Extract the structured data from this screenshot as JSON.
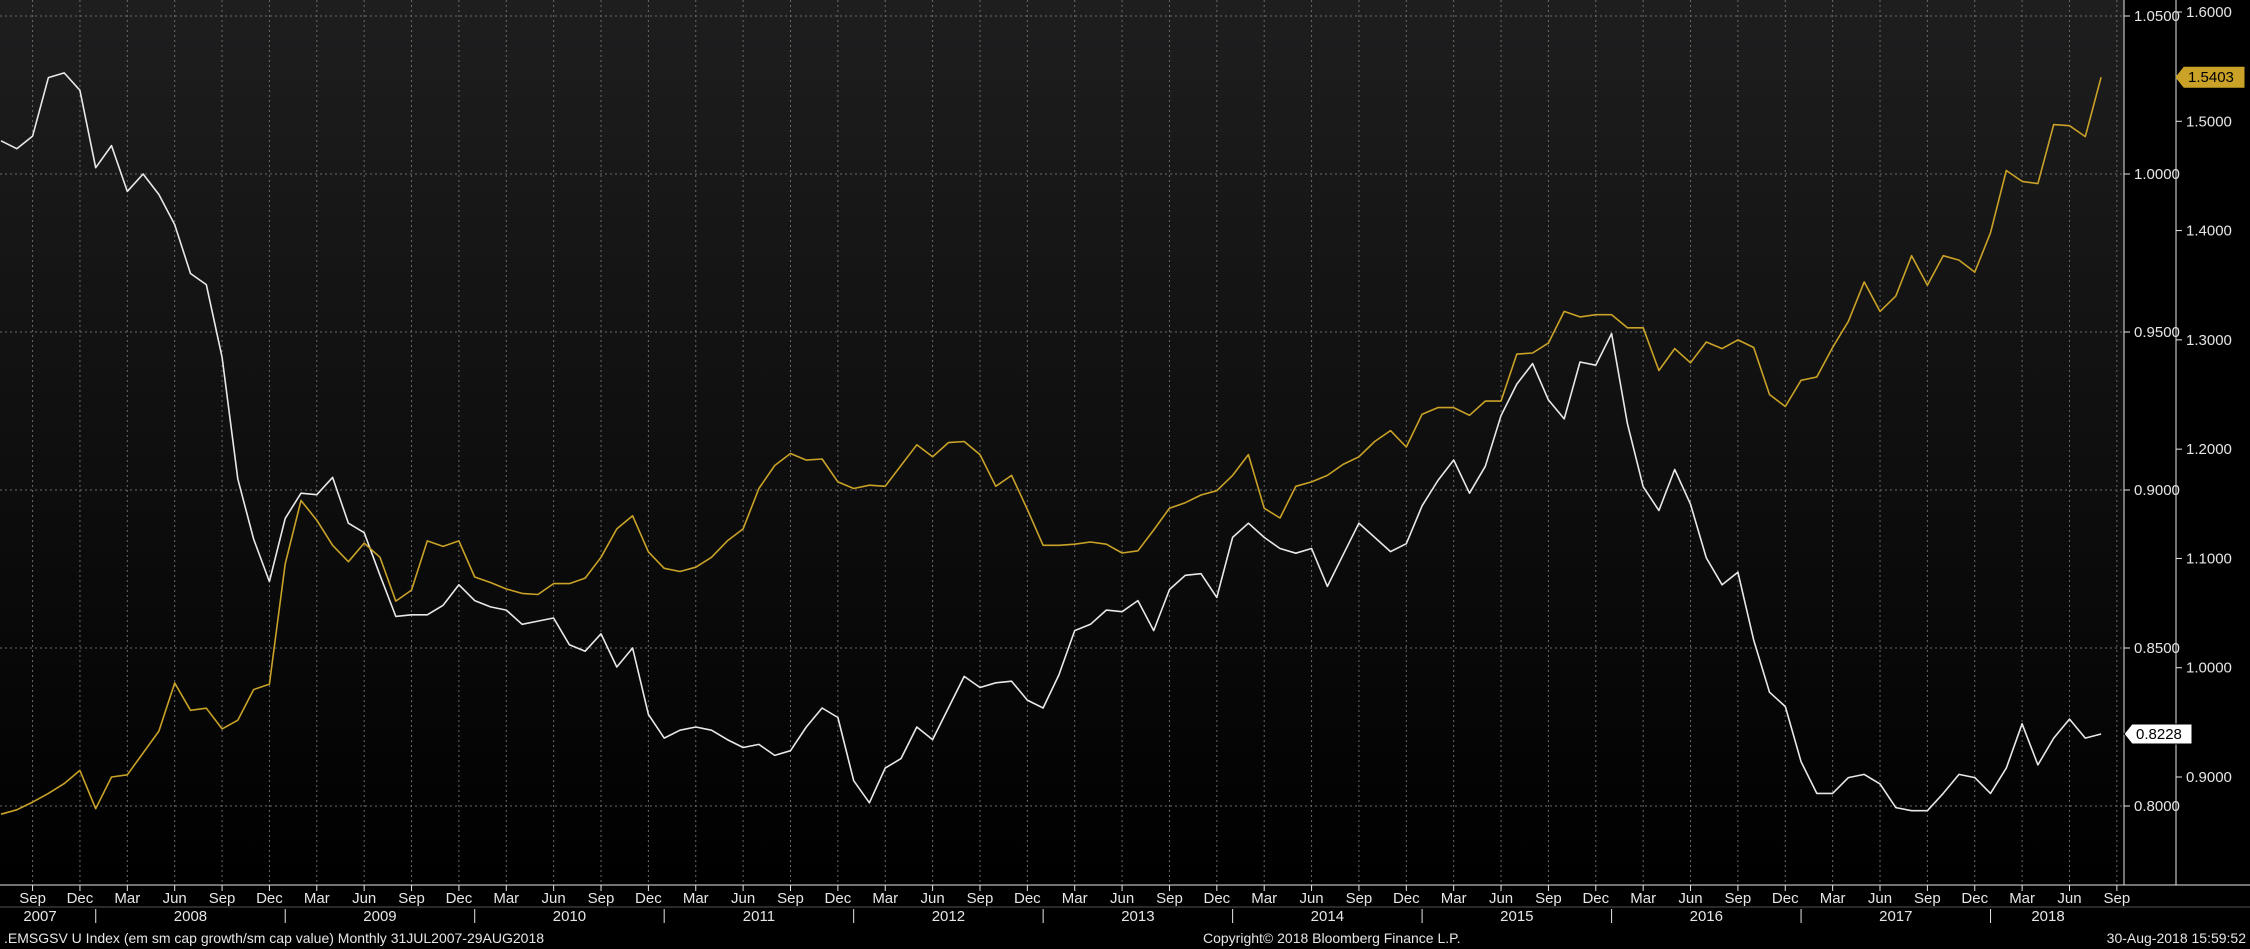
{
  "footer": {
    "left": ".EMSGSV U Index (em sm cap growth/sm cap value)  Monthly 31JUL2007-29AUG2018",
    "center": "Copyright© 2018 Bloomberg Finance L.P.",
    "right": "30-Aug-2018 15:59:52"
  },
  "colors": {
    "background_top": "#1e1e1f",
    "background_bottom": "#000000",
    "grid": "#6a6a6a",
    "white_series": "#e8e8e8",
    "gold_series": "#c9a227"
  },
  "chart_data": {
    "type": "line",
    "grid": true,
    "x_axis": {
      "month_labels": [
        "Sep",
        "Dec",
        "Mar",
        "Jun",
        "Sep",
        "Dec",
        "Mar",
        "Jun",
        "Sep",
        "Dec",
        "Mar",
        "Jun",
        "Sep",
        "Dec",
        "Mar",
        "Jun",
        "Sep",
        "Dec",
        "Mar",
        "Jun",
        "Sep",
        "Dec",
        "Mar",
        "Jun",
        "Sep",
        "Dec",
        "Mar",
        "Jun",
        "Sep",
        "Dec",
        "Mar",
        "Jun",
        "Sep",
        "Dec",
        "Mar",
        "Jun",
        "Sep",
        "Dec",
        "Mar",
        "Jun",
        "Sep",
        "Dec",
        "Mar",
        "Jun",
        "Sep"
      ],
      "year_labels": [
        "2007",
        "2008",
        "2009",
        "2010",
        "2011",
        "2012",
        "2013",
        "2014",
        "2015",
        "2016",
        "2017",
        "2018"
      ],
      "range": [
        "2007-07",
        "2018-09"
      ]
    },
    "y_axes": [
      {
        "name": "inner-right",
        "ticks": [
          "0.8000",
          "0.8500",
          "0.9000",
          "0.9500",
          "1.0000",
          "1.0500"
        ],
        "ylim": [
          0.775,
          1.05
        ]
      },
      {
        "name": "outer-right",
        "ticks": [
          "0.9000",
          "1.0000",
          "1.1000",
          "1.2000",
          "1.3000",
          "1.4000",
          "1.5000",
          "1.6000"
        ],
        "ylim": [
          0.86,
          1.6
        ]
      }
    ],
    "last_value_labels": [
      {
        "series": "gold",
        "value": "1.5403"
      },
      {
        "series": "white",
        "value": "0.8228"
      }
    ],
    "series": [
      {
        "key": "white",
        "axis": "inner-right",
        "x": [
          "2007-07",
          "2007-08",
          "2007-09",
          "2007-10",
          "2007-11",
          "2007-12",
          "2008-01",
          "2008-02",
          "2008-03",
          "2008-04",
          "2008-05",
          "2008-06",
          "2008-07",
          "2008-08",
          "2008-09",
          "2008-10",
          "2008-11",
          "2008-12",
          "2009-01",
          "2009-02",
          "2009-03",
          "2009-04",
          "2009-05",
          "2009-06",
          "2009-07",
          "2009-08",
          "2009-09",
          "2009-10",
          "2009-11",
          "2009-12",
          "2010-01",
          "2010-02",
          "2010-03",
          "2010-04",
          "2010-05",
          "2010-06",
          "2010-07",
          "2010-08",
          "2010-09",
          "2010-10",
          "2010-11",
          "2010-12",
          "2011-01",
          "2011-02",
          "2011-03",
          "2011-04",
          "2011-05",
          "2011-06",
          "2011-07",
          "2011-08",
          "2011-09",
          "2011-10",
          "2011-11",
          "2011-12",
          "2012-01",
          "2012-02",
          "2012-03",
          "2012-04",
          "2012-05",
          "2012-06",
          "2012-07",
          "2012-08",
          "2012-09",
          "2012-10",
          "2012-11",
          "2012-12",
          "2013-01",
          "2013-02",
          "2013-03",
          "2013-04",
          "2013-05",
          "2013-06",
          "2013-07",
          "2013-08",
          "2013-09",
          "2013-10",
          "2013-11",
          "2013-12",
          "2014-01",
          "2014-02",
          "2014-03",
          "2014-04",
          "2014-05",
          "2014-06",
          "2014-07",
          "2014-08",
          "2014-09",
          "2014-10",
          "2014-11",
          "2014-12",
          "2015-01",
          "2015-02",
          "2015-03",
          "2015-04",
          "2015-05",
          "2015-06",
          "2015-07",
          "2015-08",
          "2015-09",
          "2015-10",
          "2015-11",
          "2015-12",
          "2016-01",
          "2016-02",
          "2016-03",
          "2016-04",
          "2016-05",
          "2016-06",
          "2016-07",
          "2016-08",
          "2016-09",
          "2016-10",
          "2016-11",
          "2016-12",
          "2017-01",
          "2017-02",
          "2017-03",
          "2017-04",
          "2017-05",
          "2017-06",
          "2017-07",
          "2017-08",
          "2017-09",
          "2017-10",
          "2017-11",
          "2017-12",
          "2018-01",
          "2018-02",
          "2018-03",
          "2018-04",
          "2018-05",
          "2018-06",
          "2018-07",
          "2018-08"
        ],
        "values": [
          1.0105,
          1.008,
          1.012,
          1.0305,
          1.032,
          1.0265,
          1.002,
          1.009,
          0.9945,
          1.0,
          0.9935,
          0.984,
          0.9685,
          0.965,
          0.942,
          0.9035,
          0.8845,
          0.871,
          0.891,
          0.899,
          0.8985,
          0.904,
          0.8895,
          0.8865,
          0.873,
          0.86,
          0.8605,
          0.8605,
          0.8635,
          0.87,
          0.865,
          0.863,
          0.862,
          0.8575,
          0.8585,
          0.8595,
          0.851,
          0.849,
          0.8545,
          0.844,
          0.85,
          0.829,
          0.8215,
          0.824,
          0.825,
          0.824,
          0.821,
          0.8185,
          0.8195,
          0.816,
          0.8175,
          0.825,
          0.831,
          0.828,
          0.808,
          0.801,
          0.812,
          0.815,
          0.825,
          0.821,
          0.831,
          0.841,
          0.8375,
          0.839,
          0.8395,
          0.8335,
          0.831,
          0.8415,
          0.8555,
          0.8575,
          0.862,
          0.8615,
          0.865,
          0.8555,
          0.8685,
          0.873,
          0.8735,
          0.866,
          0.885,
          0.8895,
          0.885,
          0.8815,
          0.88,
          0.8815,
          0.8695,
          0.8795,
          0.8895,
          0.885,
          0.8805,
          0.883,
          0.895,
          0.903,
          0.9095,
          0.899,
          0.9075,
          0.9235,
          0.9335,
          0.94,
          0.9285,
          0.9225,
          0.9405,
          0.9395,
          0.9495,
          0.921,
          0.901,
          0.8935,
          0.9065,
          0.8955,
          0.8785,
          0.87,
          0.874,
          0.8525,
          0.836,
          0.8315,
          0.814,
          0.804,
          0.804,
          0.809,
          0.81,
          0.807,
          0.7995,
          0.7985,
          0.7985,
          0.804,
          0.81,
          0.809,
          0.804,
          0.812,
          0.826,
          0.813,
          0.8215,
          0.8275,
          0.8215,
          0.8228
        ]
      },
      {
        "key": "gold",
        "axis": "outer-right",
        "x": [
          "2007-07",
          "2007-08",
          "2007-09",
          "2007-10",
          "2007-11",
          "2007-12",
          "2008-01",
          "2008-02",
          "2008-03",
          "2008-04",
          "2008-05",
          "2008-06",
          "2008-07",
          "2008-08",
          "2008-09",
          "2008-10",
          "2008-11",
          "2008-12",
          "2009-01",
          "2009-02",
          "2009-03",
          "2009-04",
          "2009-05",
          "2009-06",
          "2009-07",
          "2009-08",
          "2009-09",
          "2009-10",
          "2009-11",
          "2009-12",
          "2010-01",
          "2010-02",
          "2010-03",
          "2010-04",
          "2010-05",
          "2010-06",
          "2010-07",
          "2010-08",
          "2010-09",
          "2010-10",
          "2010-11",
          "2010-12",
          "2011-01",
          "2011-02",
          "2011-03",
          "2011-04",
          "2011-05",
          "2011-06",
          "2011-07",
          "2011-08",
          "2011-09",
          "2011-10",
          "2011-11",
          "2011-12",
          "2012-01",
          "2012-02",
          "2012-03",
          "2012-04",
          "2012-05",
          "2012-06",
          "2012-07",
          "2012-08",
          "2012-09",
          "2012-10",
          "2012-11",
          "2012-12",
          "2013-01",
          "2013-02",
          "2013-03",
          "2013-04",
          "2013-05",
          "2013-06",
          "2013-07",
          "2013-08",
          "2013-09",
          "2013-10",
          "2013-11",
          "2013-12",
          "2014-01",
          "2014-02",
          "2014-03",
          "2014-04",
          "2014-05",
          "2014-06",
          "2014-07",
          "2014-08",
          "2014-09",
          "2014-10",
          "2014-11",
          "2014-12",
          "2015-01",
          "2015-02",
          "2015-03",
          "2015-04",
          "2015-05",
          "2015-06",
          "2015-07",
          "2015-08",
          "2015-09",
          "2015-10",
          "2015-11",
          "2015-12",
          "2016-01",
          "2016-02",
          "2016-03",
          "2016-04",
          "2016-05",
          "2016-06",
          "2016-07",
          "2016-08",
          "2016-09",
          "2016-10",
          "2016-11",
          "2016-12",
          "2017-01",
          "2017-02",
          "2017-03",
          "2017-04",
          "2017-05",
          "2017-06",
          "2017-07",
          "2017-08",
          "2017-09",
          "2017-10",
          "2017-11",
          "2017-12",
          "2018-01",
          "2018-02",
          "2018-03",
          "2018-04",
          "2018-05",
          "2018-06",
          "2018-07",
          "2018-08"
        ],
        "values": [
          0.866,
          0.87,
          0.877,
          0.885,
          0.894,
          0.906,
          0.871,
          0.9,
          0.902,
          0.922,
          0.942,
          0.986,
          0.961,
          0.963,
          0.944,
          0.952,
          0.98,
          0.985,
          1.095,
          1.153,
          1.135,
          1.112,
          1.097,
          1.114,
          1.101,
          1.061,
          1.071,
          1.116,
          1.111,
          1.116,
          1.083,
          1.078,
          1.072,
          1.068,
          1.067,
          1.077,
          1.077,
          1.082,
          1.101,
          1.127,
          1.139,
          1.106,
          1.091,
          1.088,
          1.092,
          1.101,
          1.116,
          1.127,
          1.164,
          1.185,
          1.196,
          1.19,
          1.191,
          1.17,
          1.164,
          1.167,
          1.166,
          1.185,
          1.204,
          1.193,
          1.206,
          1.207,
          1.195,
          1.166,
          1.176,
          1.145,
          1.112,
          1.112,
          1.113,
          1.115,
          1.113,
          1.105,
          1.107,
          1.126,
          1.146,
          1.151,
          1.158,
          1.162,
          1.176,
          1.195,
          1.146,
          1.137,
          1.166,
          1.17,
          1.176,
          1.186,
          1.193,
          1.207,
          1.217,
          1.202,
          1.232,
          1.238,
          1.238,
          1.231,
          1.244,
          1.244,
          1.287,
          1.288,
          1.297,
          1.326,
          1.321,
          1.323,
          1.323,
          1.311,
          1.311,
          1.272,
          1.292,
          1.279,
          1.298,
          1.292,
          1.3,
          1.293,
          1.25,
          1.239,
          1.263,
          1.266,
          1.293,
          1.317,
          1.353,
          1.326,
          1.34,
          1.377,
          1.35,
          1.377,
          1.373,
          1.362,
          1.398,
          1.455,
          1.445,
          1.443,
          1.497,
          1.496,
          1.486,
          1.5403
        ]
      }
    ]
  }
}
